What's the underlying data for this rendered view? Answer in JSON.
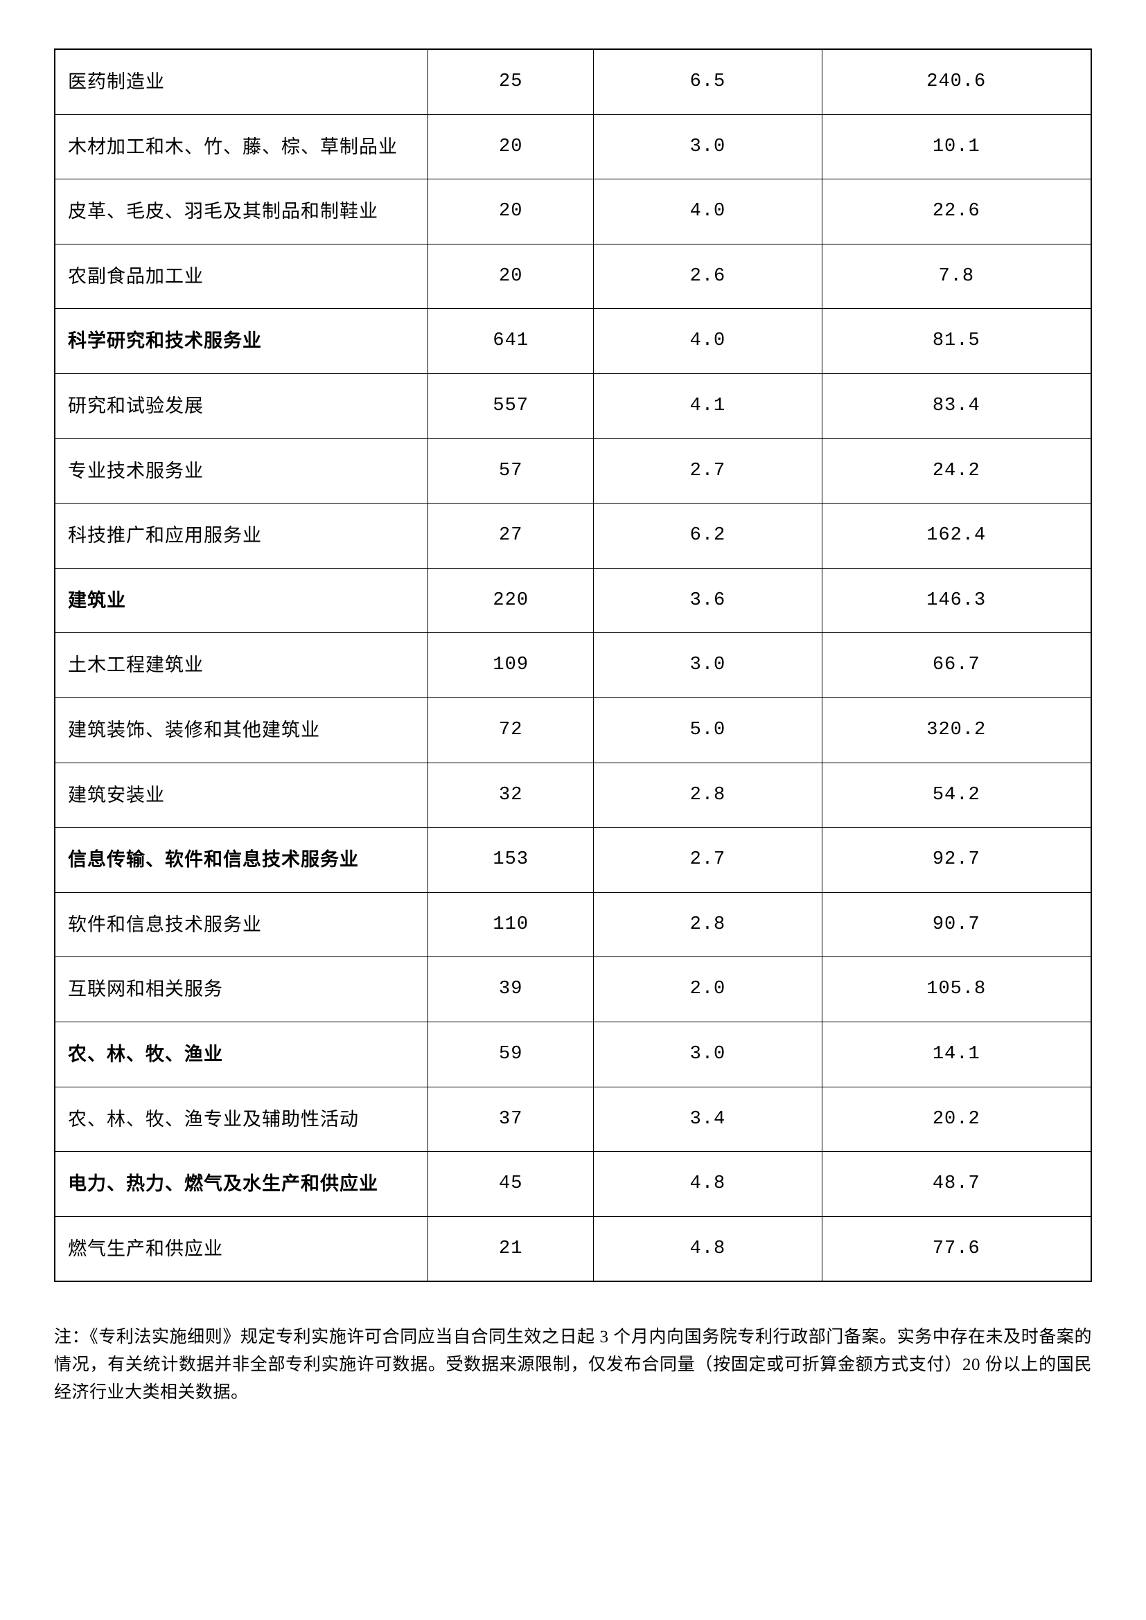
{
  "table": {
    "rows": [
      {
        "bold": false,
        "col1": "医药制造业",
        "col2": "25",
        "col3": "6.5",
        "col4": "240.6"
      },
      {
        "bold": false,
        "col1": "木材加工和木、竹、藤、棕、草制品业",
        "col2": "20",
        "col3": "3.0",
        "col4": "10.1"
      },
      {
        "bold": false,
        "col1": "皮革、毛皮、羽毛及其制品和制鞋业",
        "col2": "20",
        "col3": "4.0",
        "col4": "22.6"
      },
      {
        "bold": false,
        "col1": "农副食品加工业",
        "col2": "20",
        "col3": "2.6",
        "col4": "7.8"
      },
      {
        "bold": true,
        "col1": "科学研究和技术服务业",
        "col2": "641",
        "col3": "4.0",
        "col4": "81.5"
      },
      {
        "bold": false,
        "col1": "研究和试验发展",
        "col2": "557",
        "col3": "4.1",
        "col4": "83.4"
      },
      {
        "bold": false,
        "col1": "专业技术服务业",
        "col2": "57",
        "col3": "2.7",
        "col4": "24.2"
      },
      {
        "bold": false,
        "col1": "科技推广和应用服务业",
        "col2": "27",
        "col3": "6.2",
        "col4": "162.4"
      },
      {
        "bold": true,
        "col1": "建筑业",
        "col2": "220",
        "col3": "3.6",
        "col4": "146.3"
      },
      {
        "bold": false,
        "col1": "土木工程建筑业",
        "col2": "109",
        "col3": "3.0",
        "col4": "66.7"
      },
      {
        "bold": false,
        "col1": "建筑装饰、装修和其他建筑业",
        "col2": "72",
        "col3": "5.0",
        "col4": "320.2"
      },
      {
        "bold": false,
        "col1": "建筑安装业",
        "col2": "32",
        "col3": "2.8",
        "col4": "54.2"
      },
      {
        "bold": true,
        "col1": "信息传输、软件和信息技术服务业",
        "col2": "153",
        "col3": "2.7",
        "col4": "92.7"
      },
      {
        "bold": false,
        "col1": "软件和信息技术服务业",
        "col2": "110",
        "col3": "2.8",
        "col4": "90.7"
      },
      {
        "bold": false,
        "col1": "互联网和相关服务",
        "col2": "39",
        "col3": "2.0",
        "col4": "105.8"
      },
      {
        "bold": true,
        "col1": "农、林、牧、渔业",
        "col2": "59",
        "col3": "3.0",
        "col4": "14.1"
      },
      {
        "bold": false,
        "col1": "农、林、牧、渔专业及辅助性活动",
        "col2": "37",
        "col3": "3.4",
        "col4": "20.2"
      },
      {
        "bold": true,
        "col1": "电力、热力、燃气及水生产和供应业",
        "col2": "45",
        "col3": "4.8",
        "col4": "48.7"
      },
      {
        "bold": false,
        "col1": "燃气生产和供应业",
        "col2": "21",
        "col3": "4.8",
        "col4": "77.6"
      }
    ]
  },
  "note": "注：《专利法实施细则》规定专利实施许可合同应当自合同生效之日起 3 个月内向国务院专利行政部门备案。实务中存在未及时备案的情况，有关统计数据并非全部专利实施许可数据。受数据来源限制，仅发布合同量（按固定或可折算金额方式支付）20 份以上的国民经济行业大类相关数据。"
}
